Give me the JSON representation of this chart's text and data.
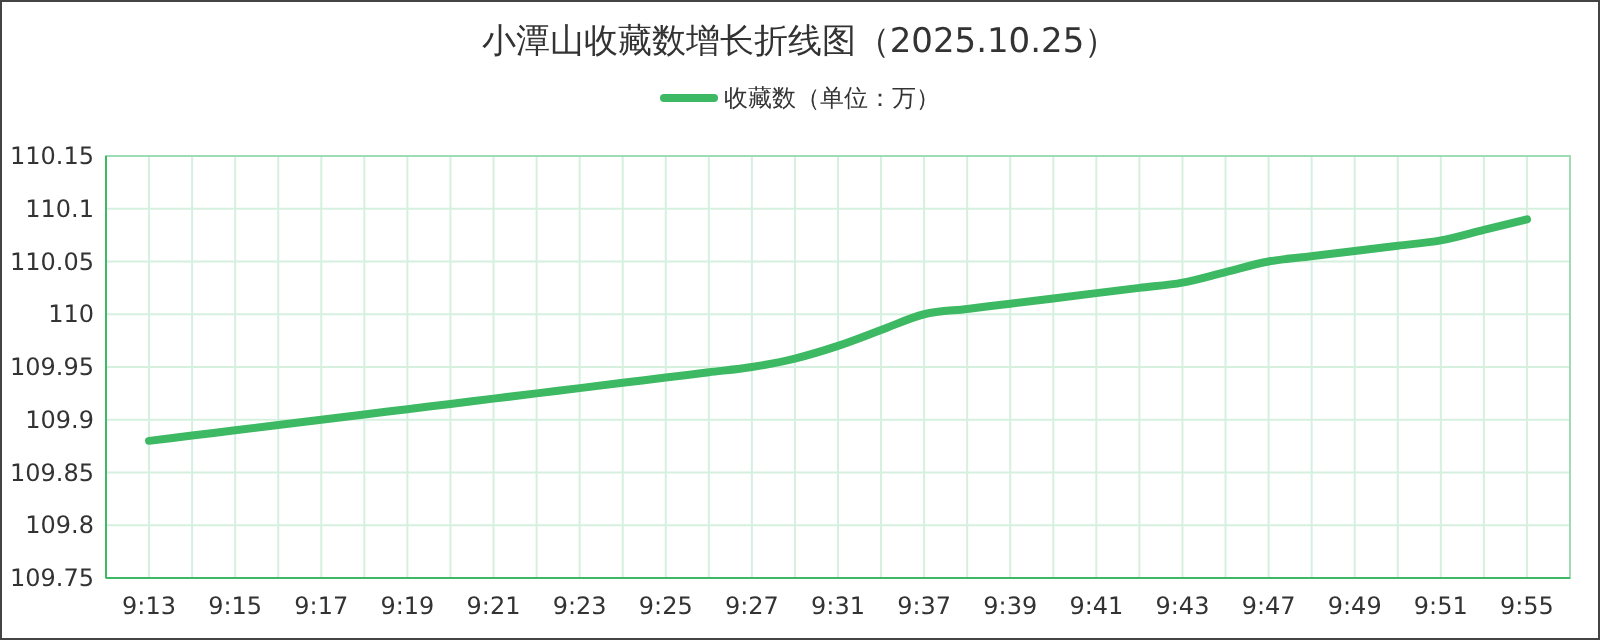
{
  "chart_data": {
    "type": "line",
    "title": "小潭山收藏数增长折线图（2025.10.25）",
    "categories": [
      "9:13",
      null,
      "9:15",
      null,
      "9:17",
      null,
      "9:19",
      null,
      "9:21",
      null,
      "9:23",
      null,
      "9:25",
      null,
      "9:27",
      null,
      "9:31",
      null,
      "9:37",
      null,
      "9:39",
      null,
      "9:41",
      null,
      "9:43",
      null,
      "9:47",
      null,
      "9:49",
      null,
      "9:51",
      null,
      "9:55"
    ],
    "series": [
      {
        "name": "收藏数（单位：万）",
        "color": "#3cb962",
        "values": [
          109.88,
          109.885,
          109.89,
          109.895,
          109.9,
          109.905,
          109.91,
          109.915,
          109.92,
          109.925,
          109.93,
          109.935,
          109.94,
          109.945,
          109.95,
          109.958,
          109.97,
          109.985,
          110.0,
          110.005,
          110.01,
          110.015,
          110.02,
          110.025,
          110.03,
          110.04,
          110.05,
          110.055,
          110.06,
          110.065,
          110.07,
          110.08,
          110.09
        ]
      }
    ],
    "ylim": [
      109.75,
      110.15
    ],
    "yticks": [
      109.75,
      109.8,
      109.85,
      109.9,
      109.95,
      110,
      110.05,
      110.1,
      110.15
    ],
    "grid": true,
    "legend": "top",
    "marker": "none",
    "line_style": "solid"
  }
}
